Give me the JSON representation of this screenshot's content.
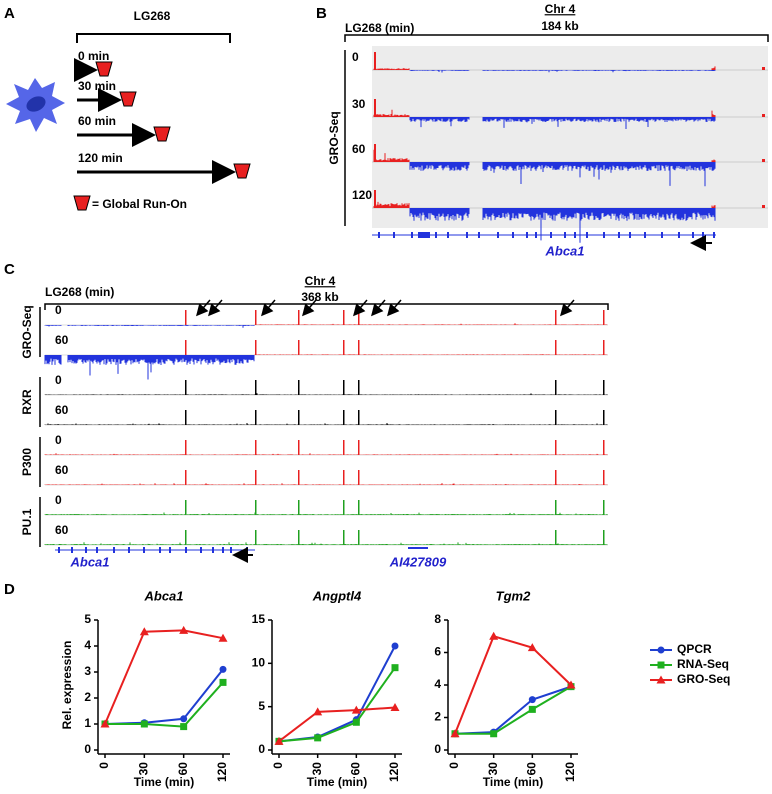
{
  "panel_labels": [
    "A",
    "B",
    "C",
    "D"
  ],
  "panel_a": {
    "title": "LG268",
    "timepoints": [
      "0 min",
      "30 min",
      "60 min",
      "120 min"
    ],
    "legend": "= Global Run-On"
  },
  "panel_b": {
    "chromosome": "Chr 4",
    "size": "184 kb",
    "treatment": "LG268 (min)",
    "assay": "GRO-Seq",
    "tracks": [
      "0",
      "30",
      "60",
      "120"
    ],
    "gene": "Abca1"
  },
  "panel_c": {
    "chromosome": "Chr 4",
    "size": "368 kb",
    "treatment": "LG268 (min)",
    "groups": [
      {
        "name": "GRO-Seq",
        "tracks": [
          "0",
          "60"
        ]
      },
      {
        "name": "RXR",
        "tracks": [
          "0",
          "60"
        ]
      },
      {
        "name": "P300",
        "tracks": [
          "0",
          "60"
        ]
      },
      {
        "name": "PU.1",
        "tracks": [
          "0",
          "60"
        ]
      }
    ],
    "genes": [
      "Abca1",
      "AI427809"
    ]
  },
  "chart_data": [
    {
      "type": "line",
      "title": "Abca1",
      "ylabel": "Rel. expression",
      "xlabel": "Time (min)",
      "categories": [
        "0",
        "30",
        "60",
        "120"
      ],
      "ylim": [
        0,
        5
      ],
      "yticks": [
        0,
        1,
        2,
        3,
        4,
        5
      ],
      "series": [
        {
          "name": "QPCR",
          "color": "#1f3fd0",
          "marker": "circle",
          "values": [
            1,
            1.05,
            1.2,
            3.1
          ]
        },
        {
          "name": "RNA-Seq",
          "color": "#1fb01f",
          "marker": "square",
          "values": [
            1,
            1.0,
            0.9,
            2.6
          ]
        },
        {
          "name": "GRO-Seq",
          "color": "#e82020",
          "marker": "triangle",
          "values": [
            1,
            4.55,
            4.6,
            4.3
          ]
        }
      ]
    },
    {
      "type": "line",
      "title": "Angptl4",
      "xlabel": "Time (min)",
      "categories": [
        "0",
        "30",
        "60",
        "120"
      ],
      "ylim": [
        0,
        15
      ],
      "yticks": [
        0,
        5,
        10,
        15
      ],
      "series": [
        {
          "name": "QPCR",
          "color": "#1f3fd0",
          "marker": "circle",
          "values": [
            1,
            1.5,
            3.5,
            12
          ]
        },
        {
          "name": "RNA-Seq",
          "color": "#1fb01f",
          "marker": "square",
          "values": [
            1,
            1.4,
            3.2,
            9.5
          ]
        },
        {
          "name": "GRO-Seq",
          "color": "#e82020",
          "marker": "triangle",
          "values": [
            1,
            4.4,
            4.6,
            4.9
          ]
        }
      ]
    },
    {
      "type": "line",
      "title": "Tgm2",
      "xlabel": "Time (min)",
      "categories": [
        "0",
        "30",
        "60",
        "120"
      ],
      "ylim": [
        0,
        8
      ],
      "yticks": [
        0,
        2,
        4,
        6,
        8
      ],
      "legend": true,
      "series": [
        {
          "name": "QPCR",
          "color": "#1f3fd0",
          "marker": "circle",
          "values": [
            1,
            1.1,
            3.1,
            3.9
          ]
        },
        {
          "name": "RNA-Seq",
          "color": "#1fb01f",
          "marker": "square",
          "values": [
            1,
            1.0,
            2.5,
            3.9
          ]
        },
        {
          "name": "GRO-Seq",
          "color": "#e82020",
          "marker": "triangle",
          "values": [
            1,
            7.0,
            6.3,
            4.0
          ]
        }
      ]
    }
  ]
}
